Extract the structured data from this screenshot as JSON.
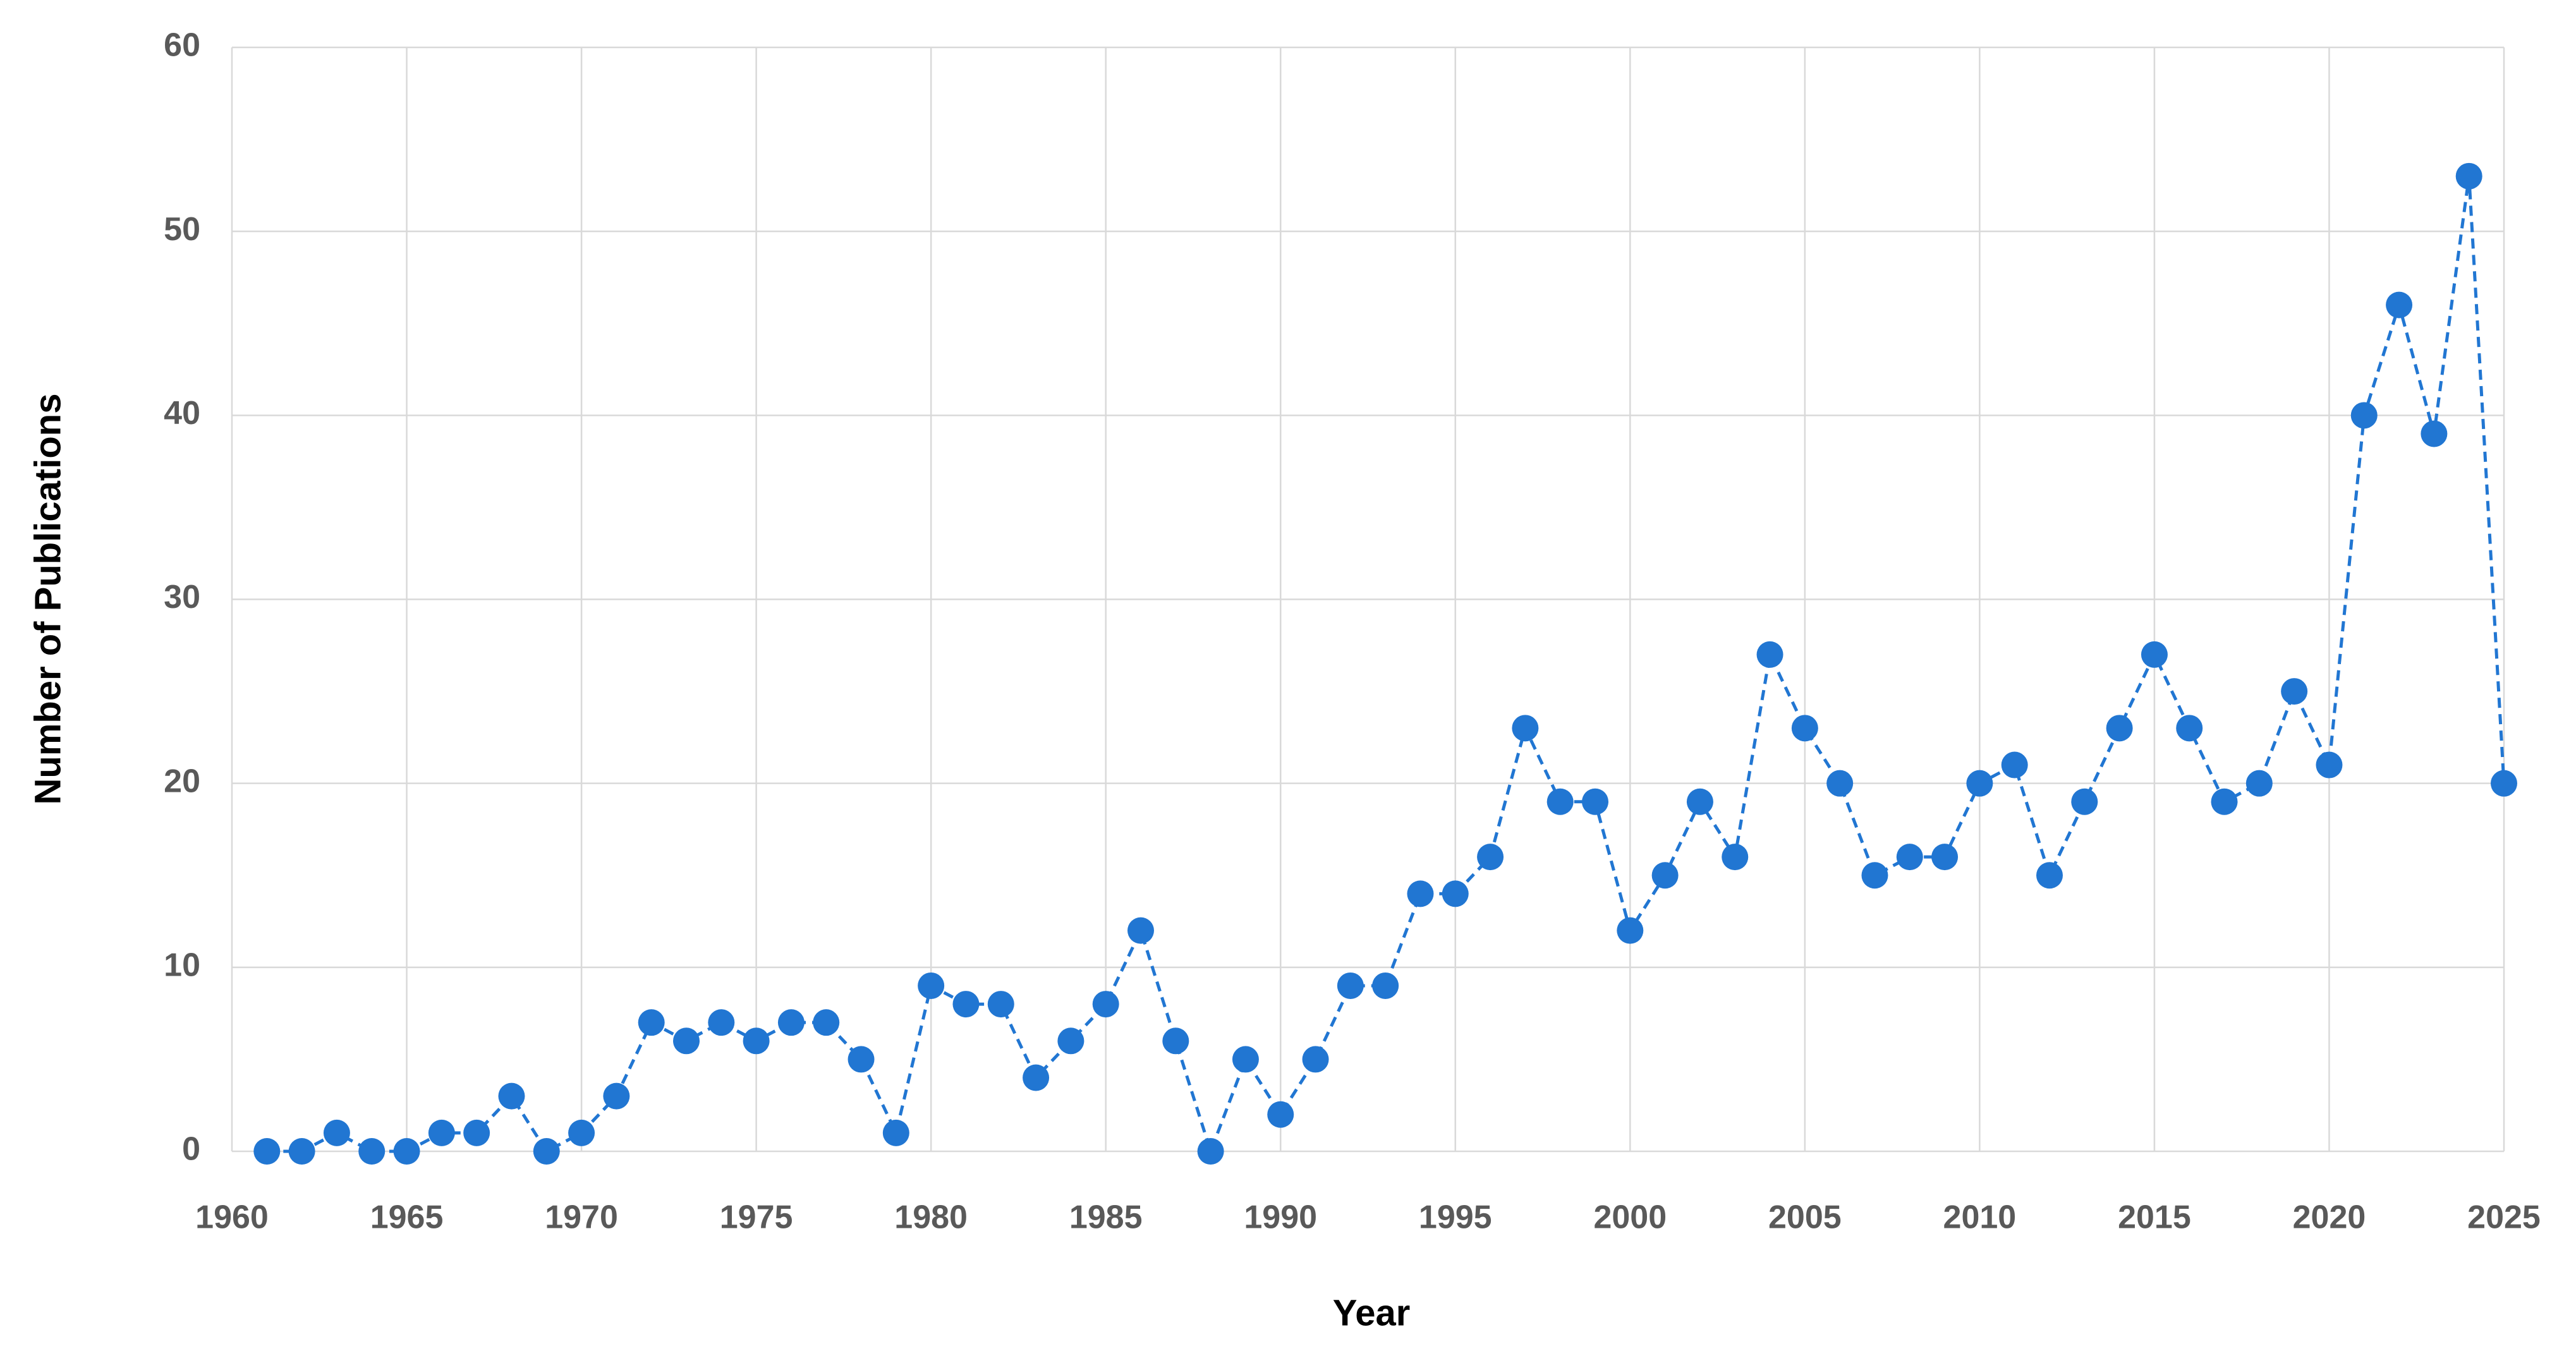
{
  "chart_data": {
    "type": "line",
    "x_label": "Year",
    "y_label": "Number of Publications",
    "x": [
      1961,
      1962,
      1963,
      1964,
      1965,
      1966,
      1967,
      1968,
      1969,
      1970,
      1971,
      1972,
      1973,
      1974,
      1975,
      1976,
      1977,
      1978,
      1979,
      1980,
      1981,
      1982,
      1983,
      1984,
      1985,
      1986,
      1987,
      1988,
      1989,
      1990,
      1991,
      1992,
      1993,
      1994,
      1995,
      1996,
      1997,
      1998,
      1999,
      2000,
      2001,
      2002,
      2003,
      2004,
      2005,
      2006,
      2007,
      2008,
      2009,
      2010,
      2011,
      2012,
      2013,
      2014,
      2015,
      2016,
      2017,
      2018,
      2019,
      2020,
      2021,
      2022,
      2023,
      2024,
      2025
    ],
    "values": [
      0,
      0,
      1,
      0,
      0,
      1,
      1,
      3,
      0,
      1,
      3,
      7,
      6,
      7,
      6,
      7,
      7,
      5,
      1,
      9,
      8,
      8,
      4,
      6,
      8,
      12,
      6,
      0,
      5,
      2,
      5,
      9,
      9,
      14,
      14,
      16,
      23,
      19,
      19,
      12,
      15,
      19,
      16,
      27,
      23,
      20,
      15,
      16,
      16,
      20,
      21,
      15,
      19,
      23,
      27,
      23,
      19,
      20,
      25,
      21,
      40,
      46,
      39,
      53,
      20
    ],
    "color": "#2176d2",
    "xlim": [
      1960,
      2025
    ],
    "xticks": [
      1960,
      1965,
      1970,
      1975,
      1980,
      1985,
      1990,
      1995,
      2000,
      2005,
      2010,
      2015,
      2020,
      2025
    ],
    "ylim": [
      0,
      60
    ],
    "yticks": [
      0,
      10,
      20,
      30,
      40,
      50,
      60
    ],
    "grid": true
  }
}
